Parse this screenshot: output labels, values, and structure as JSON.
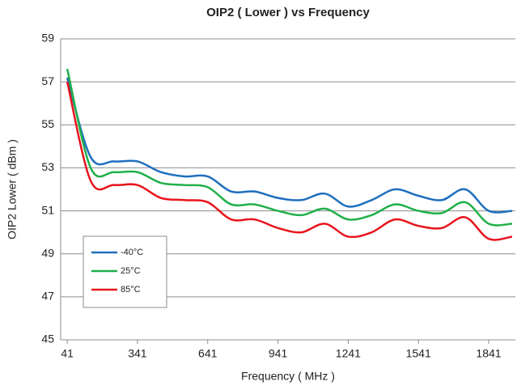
{
  "chart_data": {
    "type": "line",
    "title": "OIP2 ( Lower ) vs Frequency",
    "x_label": "Frequency ( MHz )",
    "y_label": "OIP2 Lower ( dBm )",
    "x": [
      41,
      141,
      241,
      341,
      441,
      541,
      641,
      741,
      841,
      941,
      1041,
      1141,
      1241,
      1341,
      1441,
      1541,
      1641,
      1741,
      1841,
      1941
    ],
    "series": [
      {
        "name": "-40°C",
        "color": "#1f6fbf",
        "values": [
          57.2,
          53.5,
          53.3,
          53.3,
          52.8,
          52.6,
          52.6,
          51.9,
          51.9,
          51.6,
          51.5,
          51.8,
          51.2,
          51.5,
          52.0,
          51.7,
          51.5,
          52.0,
          51.0,
          51.0
        ]
      },
      {
        "name": "25°C",
        "color": "#1fb04a",
        "values": [
          57.6,
          53.0,
          52.8,
          52.8,
          52.3,
          52.2,
          52.1,
          51.3,
          51.3,
          51.0,
          50.8,
          51.1,
          50.6,
          50.8,
          51.3,
          51.0,
          50.9,
          51.4,
          50.4,
          50.4
        ]
      },
      {
        "name": "85°C",
        "color": "#e8141c",
        "values": [
          57.0,
          52.4,
          52.2,
          52.2,
          51.6,
          51.5,
          51.4,
          50.6,
          50.6,
          50.2,
          50.0,
          50.4,
          49.8,
          50.0,
          50.6,
          50.3,
          50.2,
          50.7,
          49.7,
          49.8
        ]
      }
    ],
    "xlim": [
      13,
      1955
    ],
    "xticks": [
      41,
      341,
      641,
      941,
      1241,
      1541,
      1841
    ],
    "ylim": [
      45,
      59
    ],
    "yticks": [
      45,
      47,
      49,
      51,
      53,
      55,
      57,
      59
    ],
    "grid": true,
    "legend": "lower left"
  }
}
